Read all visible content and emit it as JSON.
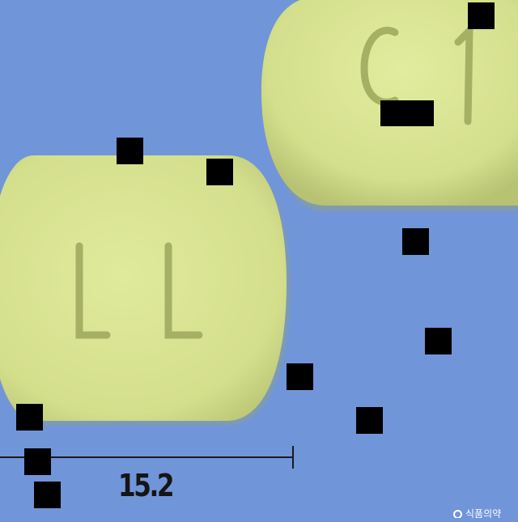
{
  "image": {
    "background_color": "#7195d9",
    "pill_color": "#d9e493",
    "pill_shadow_color": "#aeb968",
    "imprint_color": "#a6b064"
  },
  "pills": {
    "left": {
      "imprint": "L L"
    },
    "right": {
      "imprint": "C 1"
    }
  },
  "scale_bar": {
    "label": "15.2"
  },
  "watermark": {
    "logo": "circle-logo",
    "text": "식품의약"
  }
}
